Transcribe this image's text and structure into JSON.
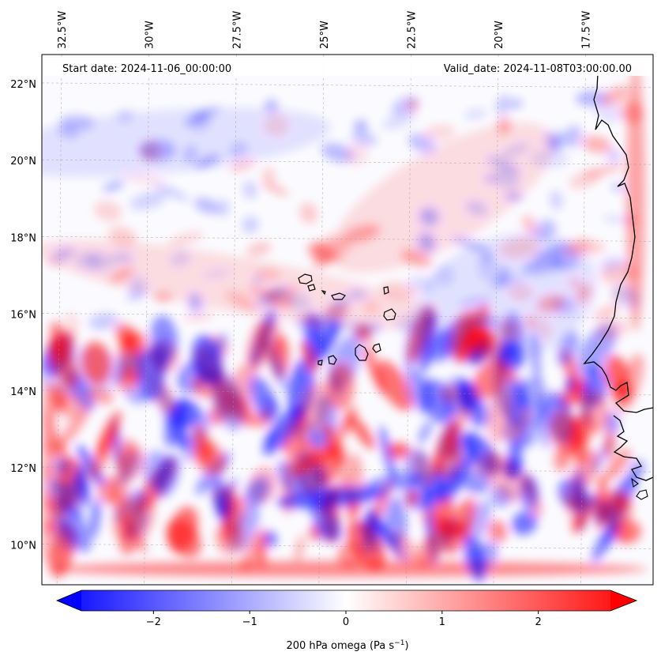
{
  "map": {
    "start_label": "Start date: 2024-11-06_00:00:00",
    "valid_label": "Valid_date: 2024-11-08T03:00:00.00",
    "lon_ticks": [
      "32.5°W",
      "30°W",
      "27.5°W",
      "25°W",
      "22.5°W",
      "20°W",
      "17.5°W"
    ],
    "lat_ticks": [
      "22°N",
      "20°N",
      "18°N",
      "16°N",
      "14°N",
      "12°N",
      "10°N"
    ],
    "lon_values": [
      -32.5,
      -30,
      -27.5,
      -25,
      -22.5,
      -20,
      -17.5
    ],
    "lat_values": [
      22,
      20,
      18,
      16,
      14,
      12,
      10
    ],
    "extent": {
      "lon_min": -33.0,
      "lon_max": -15.5,
      "lat_min": 9.0,
      "lat_max": 22.8
    },
    "field": "200 hPa omega",
    "colormap": {
      "negative": "#0000ff",
      "zero": "#ffffff",
      "positive": "#ff0000"
    }
  },
  "colorbar": {
    "label": "200 hPa omega (Pa s",
    "label_sup": "−1",
    "label_close": ")",
    "ticks": [
      "−2",
      "−1",
      "0",
      "1",
      "2"
    ],
    "tick_values": [
      -2,
      -1,
      0,
      1,
      2
    ],
    "range": [
      -2.75,
      2.75
    ],
    "extend": "both"
  }
}
